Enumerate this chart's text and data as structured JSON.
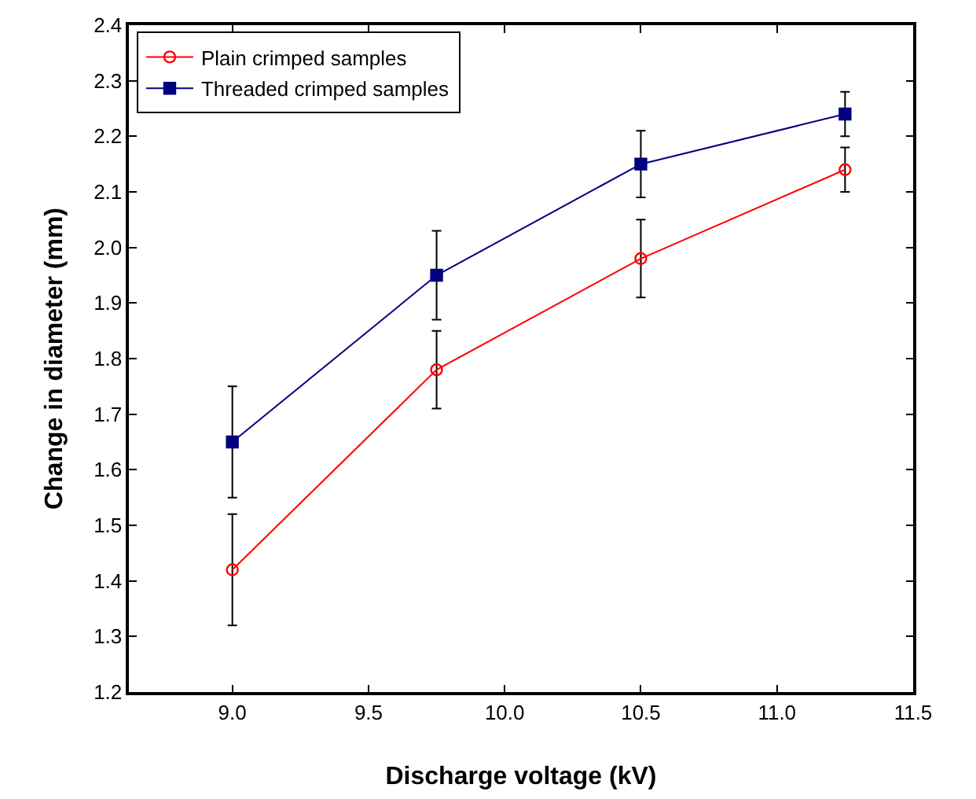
{
  "chart_data": {
    "type": "line",
    "xlabel": "Discharge voltage (kV)",
    "ylabel": "Change in diameter (mm)",
    "x": [
      9.0,
      9.75,
      10.5,
      11.25
    ],
    "series": [
      {
        "name": "Plain crimped samples",
        "color": "#ff0000",
        "marker": "circle-open",
        "values": [
          1.42,
          1.78,
          1.98,
          2.14
        ],
        "errors": [
          0.1,
          0.07,
          0.07,
          0.04
        ]
      },
      {
        "name": "Threaded crimped samples",
        "color": "#000080",
        "marker": "square",
        "values": [
          1.65,
          1.95,
          2.15,
          2.24
        ],
        "errors": [
          0.1,
          0.08,
          0.06,
          0.04
        ]
      }
    ],
    "xlim": [
      8.62,
      11.5
    ],
    "xticks": [
      {
        "value": 9,
        "label": "9.0"
      },
      9.5,
      {
        "value": 10,
        "label": "10.0"
      },
      10.5,
      {
        "value": 11,
        "label": "11.0"
      },
      11.5
    ],
    "ylim": [
      1.2,
      2.4
    ],
    "yticks": [
      1.2,
      1.3,
      1.4,
      1.5,
      1.6,
      1.7,
      1.8,
      1.9,
      {
        "value": 2,
        "label": "2.0"
      },
      2.1,
      2.2,
      2.3,
      2.4
    ],
    "legend": "top left",
    "grid": false
  }
}
